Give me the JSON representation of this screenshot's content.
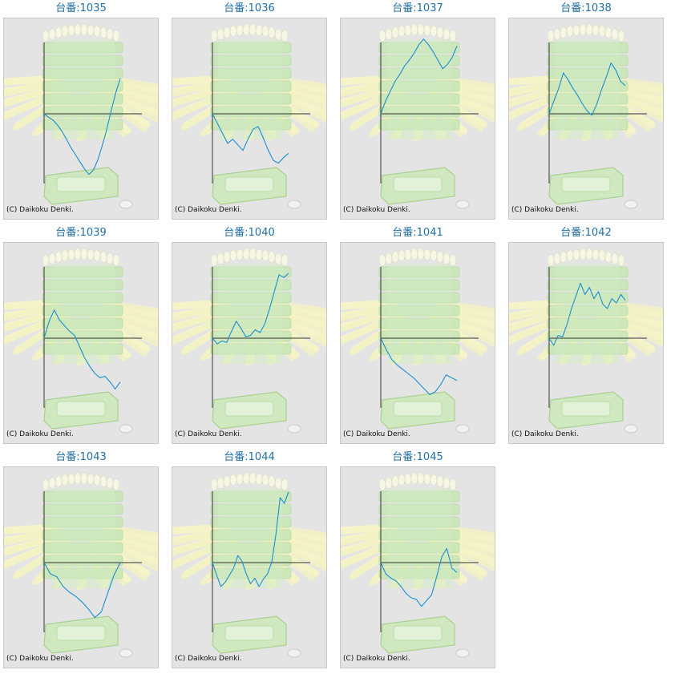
{
  "copyright": "(C) Daikoku Denki.",
  "colors": {
    "line": "#1a8fd0",
    "axis": "#333333",
    "title": "#1f6fa5",
    "panel_bg": "#e4e4e4"
  },
  "chart_data": [
    {
      "type": "line",
      "title": "台番:1035",
      "ylim": [
        -1,
        1
      ],
      "values": [
        0.0,
        -0.05,
        -0.09,
        -0.16,
        -0.25,
        -0.36,
        -0.48,
        -0.58,
        -0.68,
        -0.78,
        -0.86,
        -0.8,
        -0.65,
        -0.45,
        -0.22,
        0.05,
        0.3,
        0.5
      ]
    },
    {
      "type": "line",
      "title": "台番:1036",
      "ylim": [
        -1,
        1
      ],
      "values": [
        0.0,
        -0.14,
        -0.28,
        -0.42,
        -0.36,
        -0.44,
        -0.52,
        -0.36,
        -0.22,
        -0.18,
        -0.34,
        -0.52,
        -0.66,
        -0.7,
        -0.62,
        -0.56
      ]
    },
    {
      "type": "line",
      "title": "台番:1037",
      "ylim": [
        -1,
        1
      ],
      "values": [
        0.0,
        0.18,
        0.32,
        0.46,
        0.56,
        0.68,
        0.76,
        0.86,
        0.98,
        1.06,
        0.98,
        0.88,
        0.76,
        0.64,
        0.7,
        0.8,
        0.96
      ]
    },
    {
      "type": "line",
      "title": "台番:1038",
      "ylim": [
        -1,
        1
      ],
      "values": [
        0.0,
        0.18,
        0.36,
        0.58,
        0.48,
        0.36,
        0.26,
        0.14,
        0.04,
        -0.02,
        0.14,
        0.34,
        0.52,
        0.72,
        0.62,
        0.46,
        0.4
      ]
    },
    {
      "type": "line",
      "title": "台番:1039",
      "ylim": [
        -1,
        1
      ],
      "values": [
        0.0,
        0.24,
        0.4,
        0.26,
        0.18,
        0.1,
        0.04,
        -0.12,
        -0.28,
        -0.4,
        -0.5,
        -0.56,
        -0.54,
        -0.62,
        -0.72,
        -0.62
      ]
    },
    {
      "type": "line",
      "title": "台番:1040",
      "ylim": [
        -1,
        1
      ],
      "values": [
        0.0,
        -0.08,
        -0.04,
        -0.06,
        0.1,
        0.24,
        0.14,
        0.02,
        0.04,
        0.12,
        0.08,
        0.2,
        0.42,
        0.66,
        0.9,
        0.86,
        0.92
      ]
    },
    {
      "type": "line",
      "title": "台番:1041",
      "ylim": [
        -1,
        1
      ],
      "values": [
        0.0,
        -0.16,
        -0.3,
        -0.38,
        -0.44,
        -0.5,
        -0.56,
        -0.64,
        -0.72,
        -0.8,
        -0.76,
        -0.66,
        -0.52,
        -0.56,
        -0.6
      ]
    },
    {
      "type": "line",
      "title": "台番:1042",
      "ylim": [
        -1,
        1
      ],
      "values": [
        0.0,
        -0.1,
        0.04,
        0.02,
        0.2,
        0.42,
        0.6,
        0.78,
        0.62,
        0.72,
        0.56,
        0.66,
        0.48,
        0.42,
        0.56,
        0.5,
        0.62,
        0.54
      ]
    },
    {
      "type": "line",
      "title": "台番:1043",
      "ylim": [
        -1,
        1
      ],
      "values": [
        0.0,
        -0.16,
        -0.2,
        -0.34,
        -0.42,
        -0.48,
        -0.56,
        -0.66,
        -0.78,
        -0.7,
        -0.44,
        -0.18,
        0.0
      ]
    },
    {
      "type": "line",
      "title": "台番:1044",
      "ylim": [
        -1,
        1
      ],
      "values": [
        0.0,
        -0.18,
        -0.34,
        -0.28,
        -0.18,
        -0.08,
        0.1,
        0.02,
        -0.16,
        -0.3,
        -0.22,
        -0.34,
        -0.24,
        -0.16,
        0.0,
        0.4,
        0.92,
        0.84,
        1.0
      ]
    },
    {
      "type": "line",
      "title": "台番:1045",
      "ylim": [
        -1,
        1
      ],
      "values": [
        0.0,
        -0.16,
        -0.22,
        -0.26,
        -0.34,
        -0.44,
        -0.5,
        -0.52,
        -0.62,
        -0.54,
        -0.46,
        -0.2,
        0.08,
        0.2,
        -0.08,
        -0.14
      ]
    }
  ]
}
